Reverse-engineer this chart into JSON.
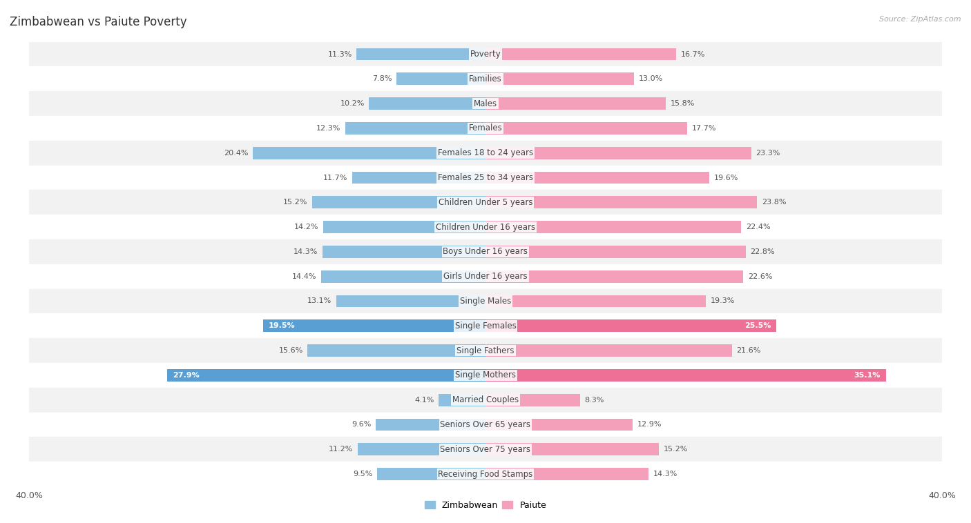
{
  "title": "Zimbabwean vs Paiute Poverty",
  "source": "Source: ZipAtlas.com",
  "categories": [
    "Poverty",
    "Families",
    "Males",
    "Females",
    "Females 18 to 24 years",
    "Females 25 to 34 years",
    "Children Under 5 years",
    "Children Under 16 years",
    "Boys Under 16 years",
    "Girls Under 16 years",
    "Single Males",
    "Single Females",
    "Single Fathers",
    "Single Mothers",
    "Married Couples",
    "Seniors Over 65 years",
    "Seniors Over 75 years",
    "Receiving Food Stamps"
  ],
  "zimbabwean": [
    11.3,
    7.8,
    10.2,
    12.3,
    20.4,
    11.7,
    15.2,
    14.2,
    14.3,
    14.4,
    13.1,
    19.5,
    15.6,
    27.9,
    4.1,
    9.6,
    11.2,
    9.5
  ],
  "paiute": [
    16.7,
    13.0,
    15.8,
    17.7,
    23.3,
    19.6,
    23.8,
    22.4,
    22.8,
    22.6,
    19.3,
    25.5,
    21.6,
    35.1,
    8.3,
    12.9,
    15.2,
    14.3
  ],
  "zimbabwean_color": "#8dbfe0",
  "paiute_color": "#f4a0ba",
  "zimbabwean_highlight_color": "#5a9fd4",
  "paiute_highlight_color": "#ee7096",
  "highlight_indices": [
    11,
    13
  ],
  "background_colors": [
    "#f2f2f2",
    "#ffffff"
  ],
  "bar_height": 0.5,
  "xlim": 40.0,
  "title_fontsize": 12,
  "label_fontsize": 8.5,
  "value_fontsize": 8,
  "legend_fontsize": 9,
  "axis_label_fontsize": 9
}
